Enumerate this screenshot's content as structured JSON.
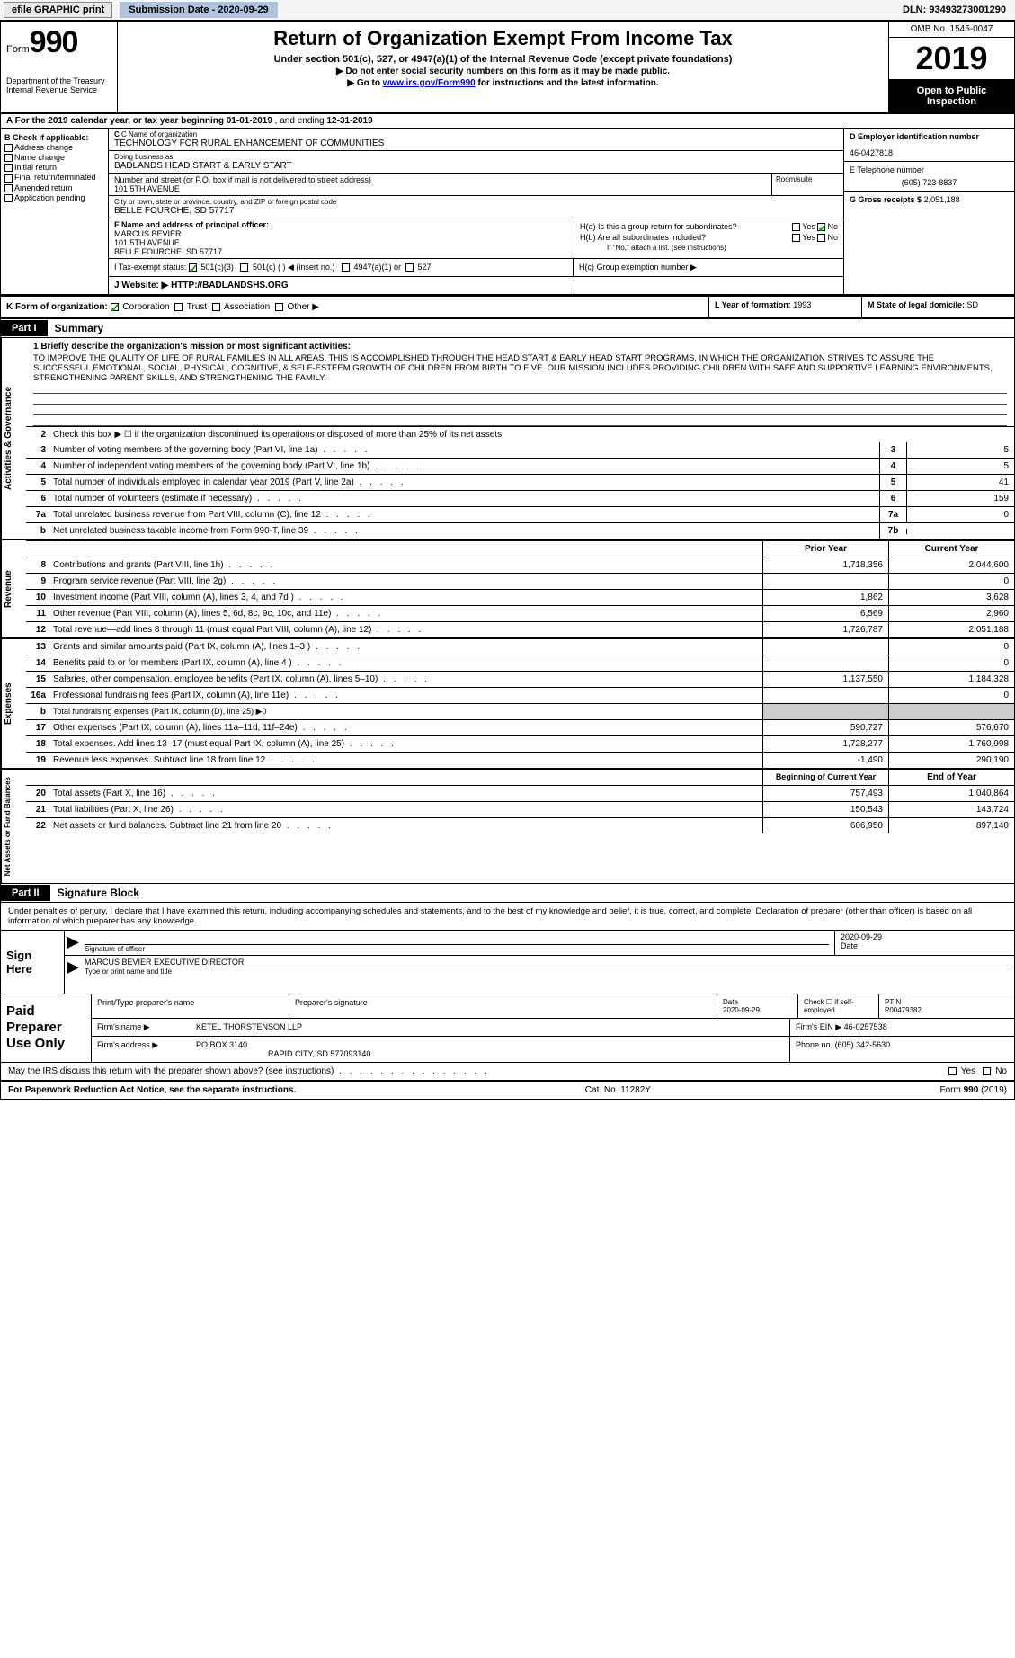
{
  "topbar": {
    "efile": "efile GRAPHIC print",
    "subdate_label": "Submission Date - 2020-09-29",
    "dln": "DLN: 93493273001290"
  },
  "header": {
    "form_word": "Form",
    "form_num": "990",
    "dept": "Department of the Treasury Internal Revenue Service",
    "title": "Return of Organization Exempt From Income Tax",
    "subtitle": "Under section 501(c), 527, or 4947(a)(1) of the Internal Revenue Code (except private foundations)",
    "arrow1": "▶ Do not enter social security numbers on this form as it may be made public.",
    "arrow2_pre": "▶ Go to ",
    "arrow2_link": "www.irs.gov/Form990",
    "arrow2_post": " for instructions and the latest information.",
    "omb": "OMB No. 1545-0047",
    "year": "2019",
    "open": "Open to Public Inspection"
  },
  "rowA": {
    "text_pre": "A For the 2019 calendar year, or tax year beginning ",
    "beg": "01-01-2019",
    "text_mid": "  , and ending ",
    "end": "12-31-2019"
  },
  "B": {
    "label": "B Check if applicable:",
    "items": [
      "Address change",
      "Name change",
      "Initial return",
      "Final return/terminated",
      "Amended return",
      "Application pending"
    ]
  },
  "C": {
    "name_lbl": "C Name of organization",
    "name": "TECHNOLOGY FOR RURAL ENHANCEMENT OF COMMUNITIES",
    "dba_lbl": "Doing business as",
    "dba": "BADLANDS HEAD START & EARLY START",
    "addr_lbl": "Number and street (or P.O. box if mail is not delivered to street address)",
    "addr": "101 5TH AVENUE",
    "room_lbl": "Room/suite",
    "city_lbl": "City or town, state or province, country, and ZIP or foreign postal code",
    "city": "BELLE FOURCHE, SD  57717"
  },
  "D": {
    "lbl": "D Employer identification number",
    "val": "46-0427818"
  },
  "E": {
    "lbl": "E Telephone number",
    "val": "(605) 723-8837"
  },
  "G": {
    "lbl": "G Gross receipts $",
    "val": "2,051,188"
  },
  "F": {
    "lbl": "F  Name and address of principal officer:",
    "name": "MARCUS BEVIER",
    "addr1": "101 5TH AVENUE",
    "addr2": "BELLE FOURCHE, SD  57717"
  },
  "H": {
    "ha": "H(a)  Is this a group return for subordinates?",
    "hb": "H(b)  Are all subordinates included?",
    "hbnote": "If \"No,\" attach a list. (see instructions)",
    "hc": "H(c)  Group exemption number ▶",
    "yes": "Yes",
    "no": "No"
  },
  "I": {
    "lbl": "I   Tax-exempt status:",
    "o1": "501(c)(3)",
    "o2": "501(c) (   ) ◀ (insert no.)",
    "o3": "4947(a)(1) or",
    "o4": "527"
  },
  "J": {
    "lbl": "J   Website: ▶",
    "val": "HTTP://BADLANDSHS.ORG"
  },
  "K": {
    "lbl": "K Form of organization:",
    "o1": "Corporation",
    "o2": "Trust",
    "o3": "Association",
    "o4": "Other ▶"
  },
  "L": {
    "lbl": "L Year of formation:",
    "val": "1993"
  },
  "M": {
    "lbl": "M State of legal domicile:",
    "val": "SD"
  },
  "part1": {
    "hdr": "Part I",
    "title": "Summary",
    "vlabels": [
      "Activities & Governance",
      "Revenue",
      "Expenses",
      "Net Assets or Fund Balances"
    ],
    "line1_lbl": "1  Briefly describe the organization's mission or most significant activities:",
    "mission": "TO IMPROVE THE QUALITY OF LIFE OF RURAL FAMILIES IN ALL AREAS. THIS IS ACCOMPLISHED THROUGH THE HEAD START & EARLY HEAD START PROGRAMS, IN WHICH THE ORGANIZATION STRIVES TO ASSURE THE SUCCESSFUL,EMOTIONAL, SOCIAL, PHYSICAL, COGNITIVE, & SELF-ESTEEM GROWTH OF CHILDREN FROM BIRTH TO FIVE. OUR MISSION INCLUDES PROVIDING CHILDREN WITH SAFE AND SUPPORTIVE LEARNING ENVIRONMENTS, STRENGTHENING PARENT SKILLS, AND STRENGTHENING THE FAMILY.",
    "line2": "Check this box ▶ ☐  if the organization discontinued its operations or disposed of more than 25% of its net assets.",
    "gov_lines": [
      {
        "n": "3",
        "desc": "Number of voting members of the governing body (Part VI, line 1a)",
        "box": "3",
        "val": "5"
      },
      {
        "n": "4",
        "desc": "Number of independent voting members of the governing body (Part VI, line 1b)",
        "box": "4",
        "val": "5"
      },
      {
        "n": "5",
        "desc": "Total number of individuals employed in calendar year 2019 (Part V, line 2a)",
        "box": "5",
        "val": "41"
      },
      {
        "n": "6",
        "desc": "Total number of volunteers (estimate if necessary)",
        "box": "6",
        "val": "159"
      },
      {
        "n": "7a",
        "desc": "Total unrelated business revenue from Part VIII, column (C), line 12",
        "box": "7a",
        "val": "0"
      },
      {
        "n": "b",
        "desc": "Net unrelated business taxable income from Form 990-T, line 39",
        "box": "7b",
        "val": ""
      }
    ],
    "col_hdr": {
      "c1": "Prior Year",
      "c2": "Current Year"
    },
    "rev_lines": [
      {
        "n": "8",
        "desc": "Contributions and grants (Part VIII, line 1h)",
        "c1": "1,718,356",
        "c2": "2,044,600"
      },
      {
        "n": "9",
        "desc": "Program service revenue (Part VIII, line 2g)",
        "c1": "",
        "c2": "0"
      },
      {
        "n": "10",
        "desc": "Investment income (Part VIII, column (A), lines 3, 4, and 7d )",
        "c1": "1,862",
        "c2": "3,628"
      },
      {
        "n": "11",
        "desc": "Other revenue (Part VIII, column (A), lines 5, 6d, 8c, 9c, 10c, and 11e)",
        "c1": "6,569",
        "c2": "2,960"
      },
      {
        "n": "12",
        "desc": "Total revenue—add lines 8 through 11 (must equal Part VIII, column (A), line 12)",
        "c1": "1,726,787",
        "c2": "2,051,188"
      }
    ],
    "exp_lines": [
      {
        "n": "13",
        "desc": "Grants and similar amounts paid (Part IX, column (A), lines 1–3 )",
        "c1": "",
        "c2": "0"
      },
      {
        "n": "14",
        "desc": "Benefits paid to or for members (Part IX, column (A), line 4 )",
        "c1": "",
        "c2": "0"
      },
      {
        "n": "15",
        "desc": "Salaries, other compensation, employee benefits (Part IX, column (A), lines 5–10)",
        "c1": "1,137,550",
        "c2": "1,184,328"
      },
      {
        "n": "16a",
        "desc": "Professional fundraising fees (Part IX, column (A), line 11e)",
        "c1": "",
        "c2": "0"
      },
      {
        "n": "b",
        "desc": "Total fundraising expenses (Part IX, column (D), line 25) ▶0",
        "c1": "",
        "c2": "",
        "noval": true
      },
      {
        "n": "17",
        "desc": "Other expenses (Part IX, column (A), lines 11a–11d, 11f–24e)",
        "c1": "590,727",
        "c2": "576,670"
      },
      {
        "n": "18",
        "desc": "Total expenses. Add lines 13–17 (must equal Part IX, column (A), line 25)",
        "c1": "1,728,277",
        "c2": "1,760,998"
      },
      {
        "n": "19",
        "desc": "Revenue less expenses. Subtract line 18 from line 12",
        "c1": "-1,490",
        "c2": "290,190"
      }
    ],
    "net_hdr": {
      "c1": "Beginning of Current Year",
      "c2": "End of Year"
    },
    "net_lines": [
      {
        "n": "20",
        "desc": "Total assets (Part X, line 16)",
        "c1": "757,493",
        "c2": "1,040,864"
      },
      {
        "n": "21",
        "desc": "Total liabilities (Part X, line 26)",
        "c1": "150,543",
        "c2": "143,724"
      },
      {
        "n": "22",
        "desc": "Net assets or fund balances. Subtract line 21 from line 20",
        "c1": "606,950",
        "c2": "897,140"
      }
    ]
  },
  "part2": {
    "hdr": "Part II",
    "title": "Signature Block",
    "penalty": "Under penalties of perjury, I declare that I have examined this return, including accompanying schedules and statements, and to the best of my knowledge and belief, it is true, correct, and complete. Declaration of preparer (other than officer) is based on all information of which preparer has any knowledge.",
    "sign_here": "Sign Here",
    "sig_of_officer": "Signature of officer",
    "sig_date": "2020-09-29",
    "date_lbl": "Date",
    "officer_name": "MARCUS BEVIER  EXECUTIVE DIRECTOR",
    "type_name": "Type or print name and title",
    "paid": "Paid Preparer Use Only",
    "prep_name_lbl": "Print/Type preparer's name",
    "prep_sig_lbl": "Preparer's signature",
    "prep_date_lbl": "Date",
    "prep_date": "2020-09-29",
    "check_self": "Check ☐ if self-employed",
    "ptin_lbl": "PTIN",
    "ptin": "P00479382",
    "firm_name_lbl": "Firm's name     ▶",
    "firm_name": "KETEL THORSTENSON LLP",
    "firm_ein_lbl": "Firm's EIN ▶",
    "firm_ein": "46-0257538",
    "firm_addr_lbl": "Firm's address ▶",
    "firm_addr1": "PO BOX 3140",
    "firm_addr2": "RAPID CITY, SD  577093140",
    "phone_lbl": "Phone no.",
    "phone": "(605) 342-5630",
    "may_discuss": "May the IRS discuss this return with the preparer shown above? (see instructions)",
    "yes": "Yes",
    "no": "No"
  },
  "footer": {
    "pra": "For Paperwork Reduction Act Notice, see the separate instructions.",
    "cat": "Cat. No. 11282Y",
    "form": "Form 990 (2019)"
  }
}
